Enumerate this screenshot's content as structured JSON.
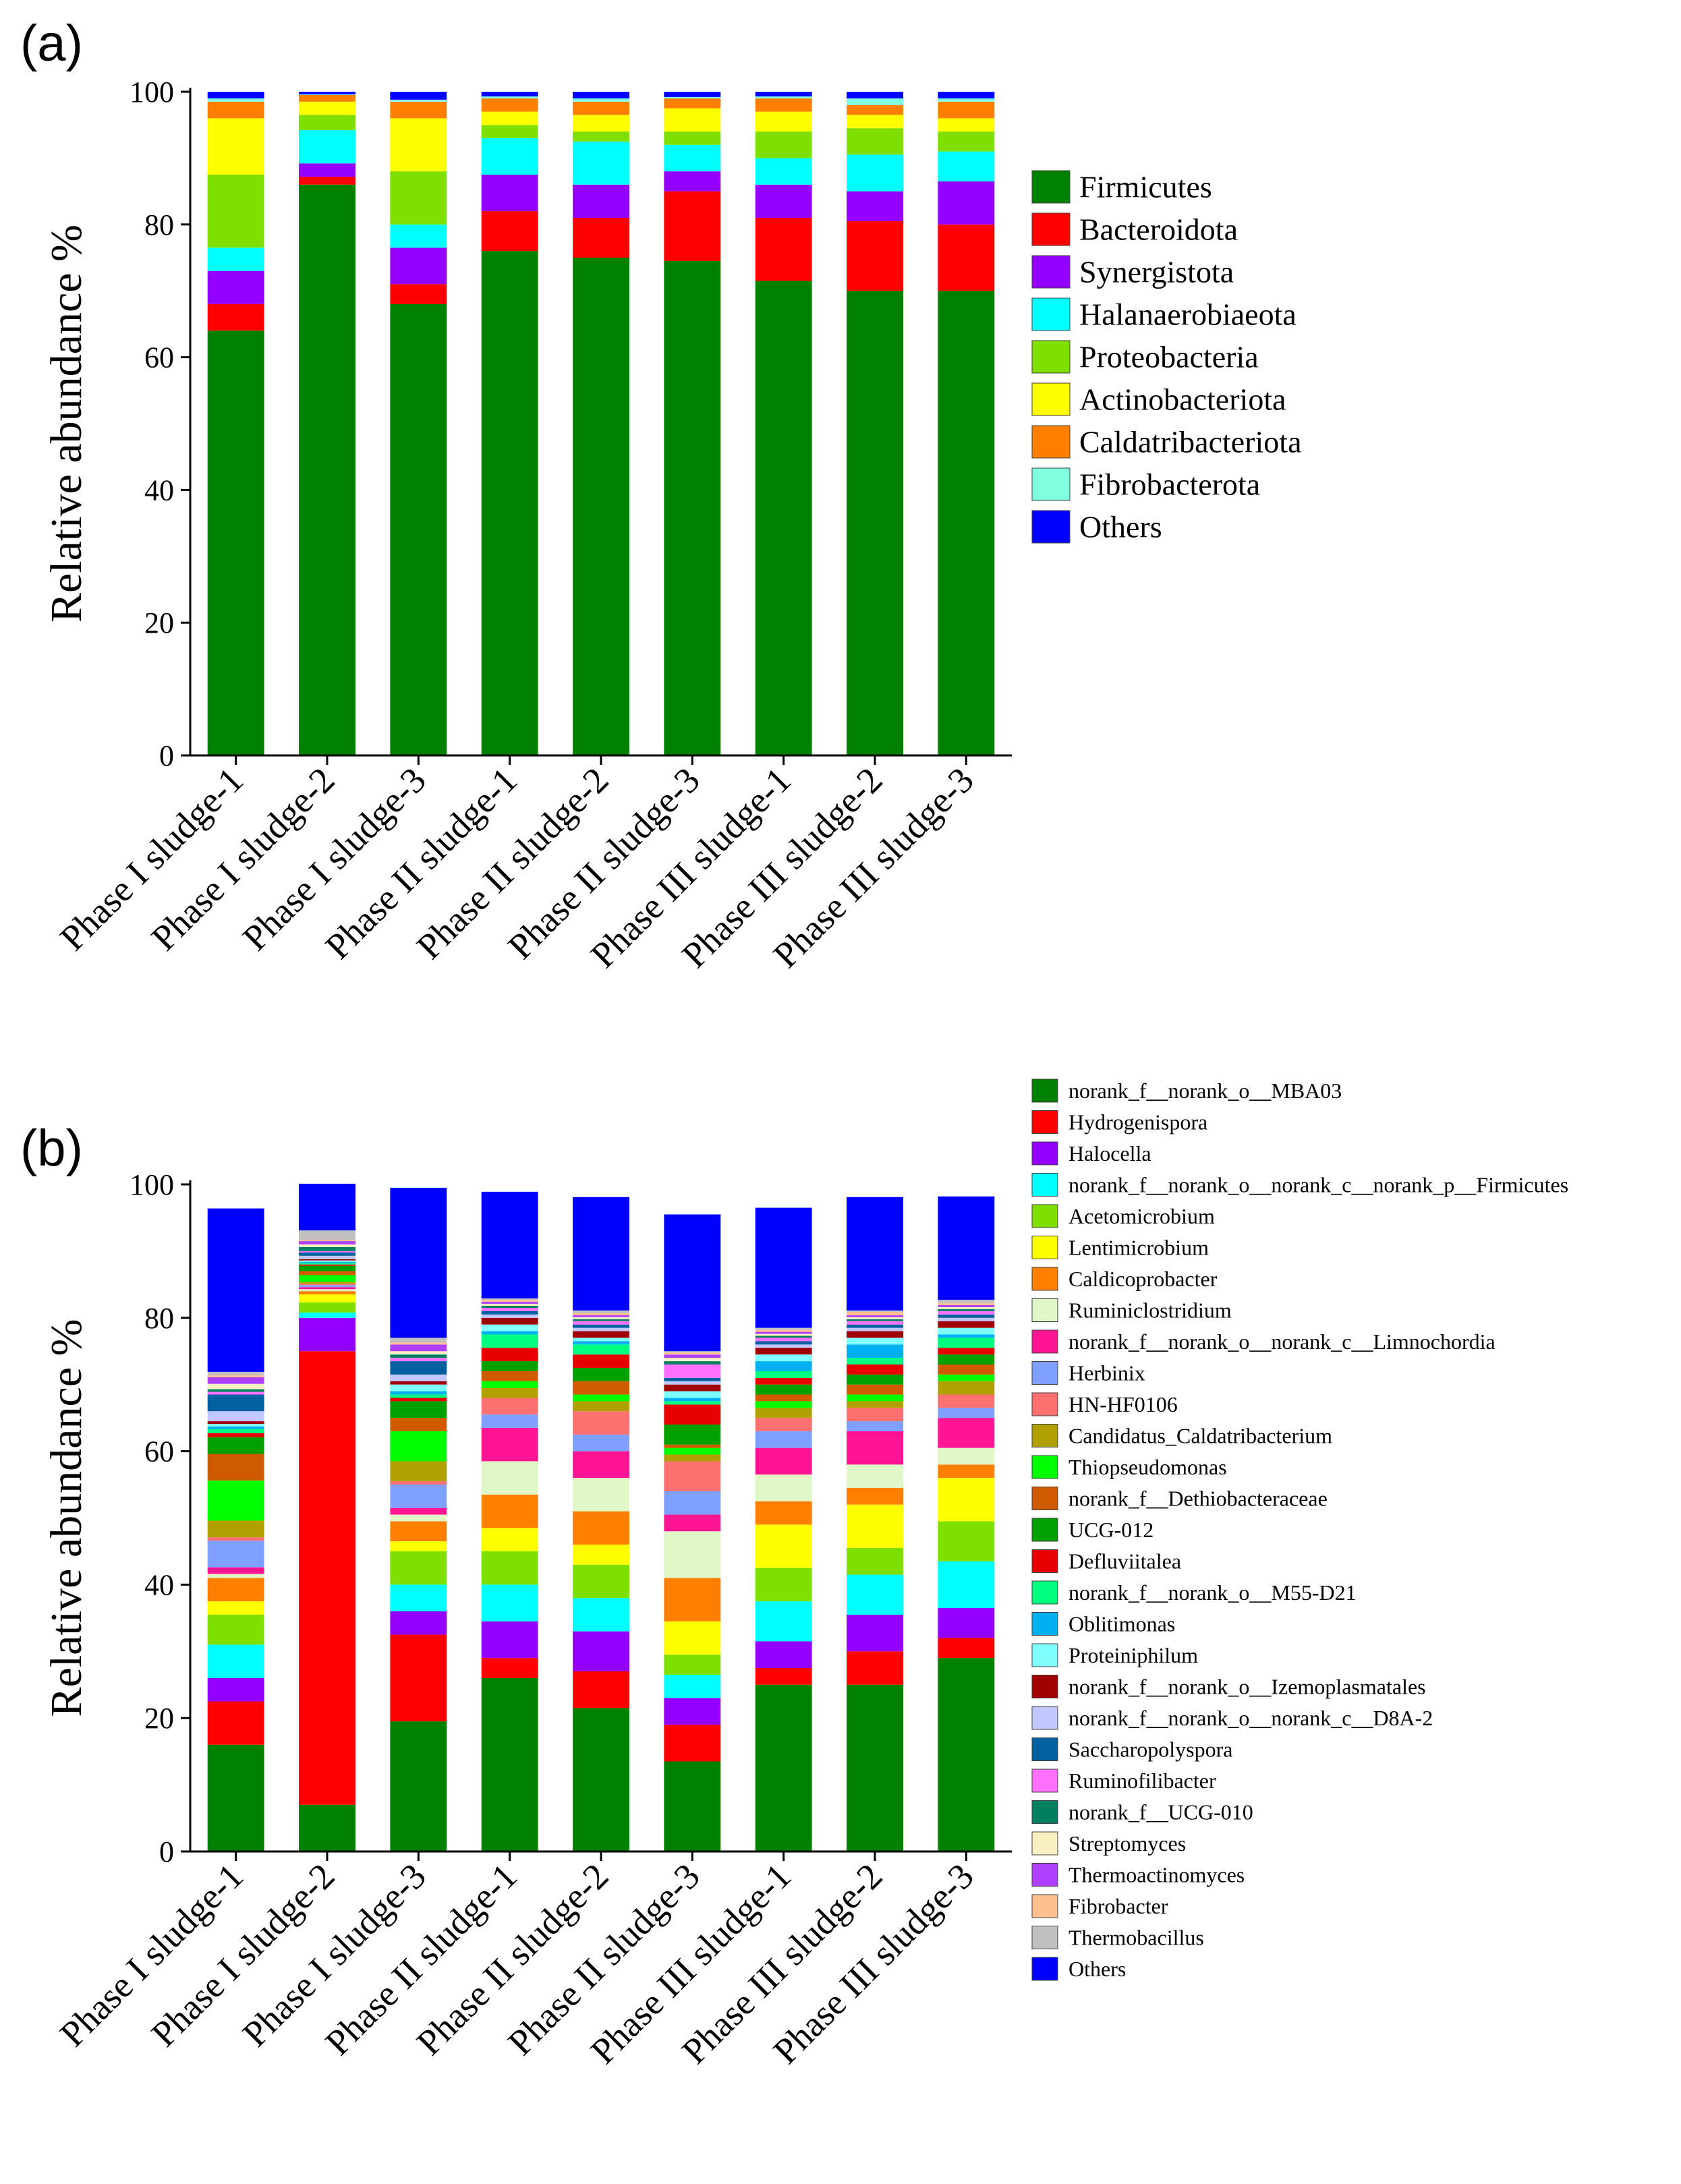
{
  "figure": {
    "label_a": "(a)",
    "label_b": "(b)"
  },
  "chart_data": [
    {
      "type": "bar",
      "stacked": true,
      "panel": "(a)",
      "title": "",
      "xlabel": "",
      "ylabel": "Relative abundance %",
      "ylim": [
        0,
        100
      ],
      "yticks": [
        0,
        20,
        40,
        60,
        80,
        100
      ],
      "legend_position": "right",
      "categories": [
        "Phase I sludge-1",
        "Phase I sludge-2",
        "Phase I sludge-3",
        "Phase II sludge-1",
        "Phase II sludge-2",
        "Phase II sludge-3",
        "Phase III sludge-1",
        "Phase III sludge-2",
        "Phase III sludge-3"
      ],
      "series": [
        {
          "name": "Firmicutes",
          "color": "#008000",
          "values": [
            64.0,
            86.0,
            68.0,
            76.0,
            75.0,
            74.5,
            71.5,
            70.0,
            70.0
          ]
        },
        {
          "name": "Bacteroidota",
          "color": "#ff0000",
          "values": [
            4.0,
            1.2,
            3.0,
            6.0,
            6.0,
            10.5,
            9.5,
            10.5,
            10.0
          ]
        },
        {
          "name": "Synergistota",
          "color": "#9400ff",
          "values": [
            5.0,
            2.0,
            5.5,
            5.5,
            5.0,
            3.0,
            5.0,
            4.5,
            6.5
          ]
        },
        {
          "name": "Halanaerobiaeota",
          "color": "#00ffff",
          "values": [
            3.5,
            5.0,
            3.5,
            5.5,
            6.5,
            4.0,
            4.0,
            5.5,
            4.5
          ]
        },
        {
          "name": "Proteobacteria",
          "color": "#7fe000",
          "values": [
            11.0,
            2.3,
            8.0,
            2.0,
            1.5,
            2.0,
            4.0,
            4.0,
            3.0
          ]
        },
        {
          "name": "Actinobacteriota",
          "color": "#ffff00",
          "values": [
            8.5,
            2.0,
            8.0,
            2.0,
            2.5,
            3.5,
            3.0,
            2.0,
            2.0
          ]
        },
        {
          "name": "Caldatribacteriota",
          "color": "#ff8000",
          "values": [
            2.5,
            1.0,
            2.5,
            2.0,
            2.0,
            1.5,
            2.0,
            1.5,
            2.5
          ]
        },
        {
          "name": "Fibrobacterota",
          "color": "#80ffe0",
          "values": [
            0.5,
            0.1,
            0.3,
            0.3,
            0.5,
            0.2,
            0.3,
            1.0,
            0.5
          ]
        },
        {
          "name": "Others",
          "color": "#0000ff",
          "values": [
            1.0,
            0.4,
            1.2,
            0.7,
            1.0,
            0.8,
            0.7,
            1.0,
            1.0
          ]
        }
      ]
    },
    {
      "type": "bar",
      "stacked": true,
      "panel": "(b)",
      "title": "",
      "xlabel": "",
      "ylabel": "Relative abundance %",
      "ylim": [
        0,
        100
      ],
      "yticks": [
        0,
        20,
        40,
        60,
        80,
        100
      ],
      "legend_position": "right",
      "categories": [
        "Phase I sludge-1",
        "Phase I sludge-2",
        "Phase I sludge-3",
        "Phase II sludge-1",
        "Phase II sludge-2",
        "Phase II sludge-3",
        "Phase III sludge-1",
        "Phase III sludge-2",
        "Phase III sludge-3"
      ],
      "series": [
        {
          "name": "norank_f__norank_o__MBA03",
          "color": "#008000",
          "values": [
            16.0,
            7.0,
            19.5,
            26.0,
            21.5,
            13.5,
            25.0,
            25.0,
            29.0
          ]
        },
        {
          "name": "Hydrogenispora",
          "color": "#ff0000",
          "values": [
            6.5,
            68.0,
            13.0,
            3.0,
            5.5,
            5.5,
            2.5,
            5.0,
            3.0
          ]
        },
        {
          "name": "Halocella",
          "color": "#9400ff",
          "values": [
            3.5,
            5.0,
            3.5,
            5.5,
            6.0,
            4.0,
            4.0,
            5.5,
            4.5
          ]
        },
        {
          "name": "norank_f__norank_o__norank_c__norank_p__Firmicutes",
          "color": "#00ffff",
          "values": [
            5.0,
            0.8,
            4.0,
            5.5,
            5.0,
            3.5,
            6.0,
            6.0,
            7.0
          ]
        },
        {
          "name": "Acetomicrobium",
          "color": "#7fe000",
          "values": [
            4.5,
            1.5,
            5.0,
            5.0,
            5.0,
            3.0,
            5.0,
            4.0,
            6.0
          ]
        },
        {
          "name": "Lentimicrobium",
          "color": "#ffff00",
          "values": [
            2.0,
            1.2,
            1.5,
            3.5,
            3.0,
            5.0,
            6.5,
            6.5,
            6.5
          ]
        },
        {
          "name": "Caldicoprobacter",
          "color": "#ff8000",
          "values": [
            3.5,
            0.5,
            3.0,
            5.0,
            5.0,
            6.5,
            3.5,
            2.5,
            2.0
          ]
        },
        {
          "name": "Ruminiclostridium",
          "color": "#e0f8c8",
          "values": [
            0.6,
            0.3,
            1.0,
            5.0,
            5.0,
            7.0,
            4.0,
            3.5,
            2.5
          ]
        },
        {
          "name": "norank_f__norank_o__norank_c__Limnochordia",
          "color": "#ff1493",
          "values": [
            1.0,
            0.3,
            1.0,
            5.0,
            4.0,
            2.5,
            4.0,
            5.0,
            4.5
          ]
        },
        {
          "name": "Herbinix",
          "color": "#80a0ff",
          "values": [
            4.0,
            0.3,
            3.5,
            2.0,
            2.5,
            3.5,
            2.5,
            1.5,
            1.5
          ]
        },
        {
          "name": "HN-HF0106",
          "color": "#ff7070",
          "values": [
            0.5,
            0.2,
            0.5,
            2.5,
            3.5,
            4.5,
            2.0,
            2.0,
            2.0
          ]
        },
        {
          "name": "Candidatus_Caldatribacterium",
          "color": "#b0a000",
          "values": [
            2.5,
            0.3,
            3.0,
            1.5,
            1.5,
            1.0,
            1.5,
            1.0,
            2.0
          ]
        },
        {
          "name": "Thiopseudomonas",
          "color": "#00ff00",
          "values": [
            6.0,
            1.0,
            4.5,
            1.0,
            1.0,
            1.0,
            1.0,
            1.0,
            1.0
          ]
        },
        {
          "name": "norank_f__Dethiobacteraceae",
          "color": "#d05a00",
          "values": [
            4.0,
            0.6,
            2.0,
            1.5,
            2.0,
            0.5,
            1.0,
            1.5,
            1.5
          ]
        },
        {
          "name": "UCG-012",
          "color": "#00a000",
          "values": [
            2.5,
            0.8,
            2.5,
            1.5,
            2.0,
            3.0,
            1.5,
            1.5,
            1.5
          ]
        },
        {
          "name": "Defluviitalea",
          "color": "#e80000",
          "values": [
            0.6,
            0.2,
            0.5,
            2.0,
            2.0,
            3.0,
            1.0,
            1.5,
            1.0
          ]
        },
        {
          "name": "norank_f__norank_o__M55-D21",
          "color": "#00ff7f",
          "values": [
            0.6,
            0.2,
            0.5,
            2.0,
            1.5,
            0.5,
            1.0,
            1.0,
            1.5
          ]
        },
        {
          "name": "Oblitimonas",
          "color": "#00b0f0",
          "values": [
            0.4,
            0.2,
            0.5,
            0.5,
            0.5,
            0.5,
            1.5,
            2.0,
            0.5
          ]
        },
        {
          "name": "Proteiniphilum",
          "color": "#80ffff",
          "values": [
            0.4,
            0.2,
            1.0,
            1.0,
            0.5,
            1.0,
            1.0,
            1.0,
            1.0
          ]
        },
        {
          "name": "norank_f__norank_o__Izemoplasmatales",
          "color": "#a00000",
          "values": [
            0.4,
            0.2,
            0.5,
            1.0,
            1.0,
            1.0,
            1.0,
            1.0,
            1.0
          ]
        },
        {
          "name": "norank_f__norank_o__norank_c__D8A-2",
          "color": "#c0c8ff",
          "values": [
            1.5,
            0.5,
            1.0,
            0.5,
            0.5,
            0.5,
            0.5,
            0.5,
            0.5
          ]
        },
        {
          "name": "Saccharopolyspora",
          "color": "#0060a0",
          "values": [
            2.5,
            0.5,
            2.0,
            0.5,
            0.5,
            0.5,
            0.5,
            0.5,
            0.5
          ]
        },
        {
          "name": "Ruminofilibacter",
          "color": "#ff70ff",
          "values": [
            0.4,
            0.2,
            0.5,
            0.5,
            0.5,
            2.0,
            0.5,
            0.5,
            0.5
          ]
        },
        {
          "name": "norank_f__UCG-010",
          "color": "#008060",
          "values": [
            0.4,
            0.6,
            0.5,
            0.3,
            0.3,
            0.5,
            0.3,
            0.3,
            0.3
          ]
        },
        {
          "name": "Streptomyces",
          "color": "#f8f0c0",
          "values": [
            0.8,
            0.4,
            0.5,
            0.3,
            0.3,
            0.5,
            0.3,
            0.3,
            0.3
          ]
        },
        {
          "name": "Thermoactinomyces",
          "color": "#b040ff",
          "values": [
            1.0,
            0.5,
            1.0,
            0.3,
            0.3,
            0.5,
            0.3,
            0.3,
            0.3
          ]
        },
        {
          "name": "Fibrobacter",
          "color": "#ffc090",
          "values": [
            0.3,
            0.2,
            0.3,
            0.3,
            0.3,
            0.3,
            0.3,
            0.5,
            0.3
          ]
        },
        {
          "name": "Thermobacillus",
          "color": "#c0c0c0",
          "values": [
            0.5,
            1.4,
            0.7,
            0.2,
            0.4,
            0.2,
            0.3,
            0.2,
            0.5
          ]
        },
        {
          "name": "Others",
          "color": "#0000ff",
          "values": [
            24.5,
            7.0,
            22.5,
            16.0,
            17.0,
            20.5,
            18.0,
            17.0,
            15.5
          ]
        }
      ]
    }
  ]
}
